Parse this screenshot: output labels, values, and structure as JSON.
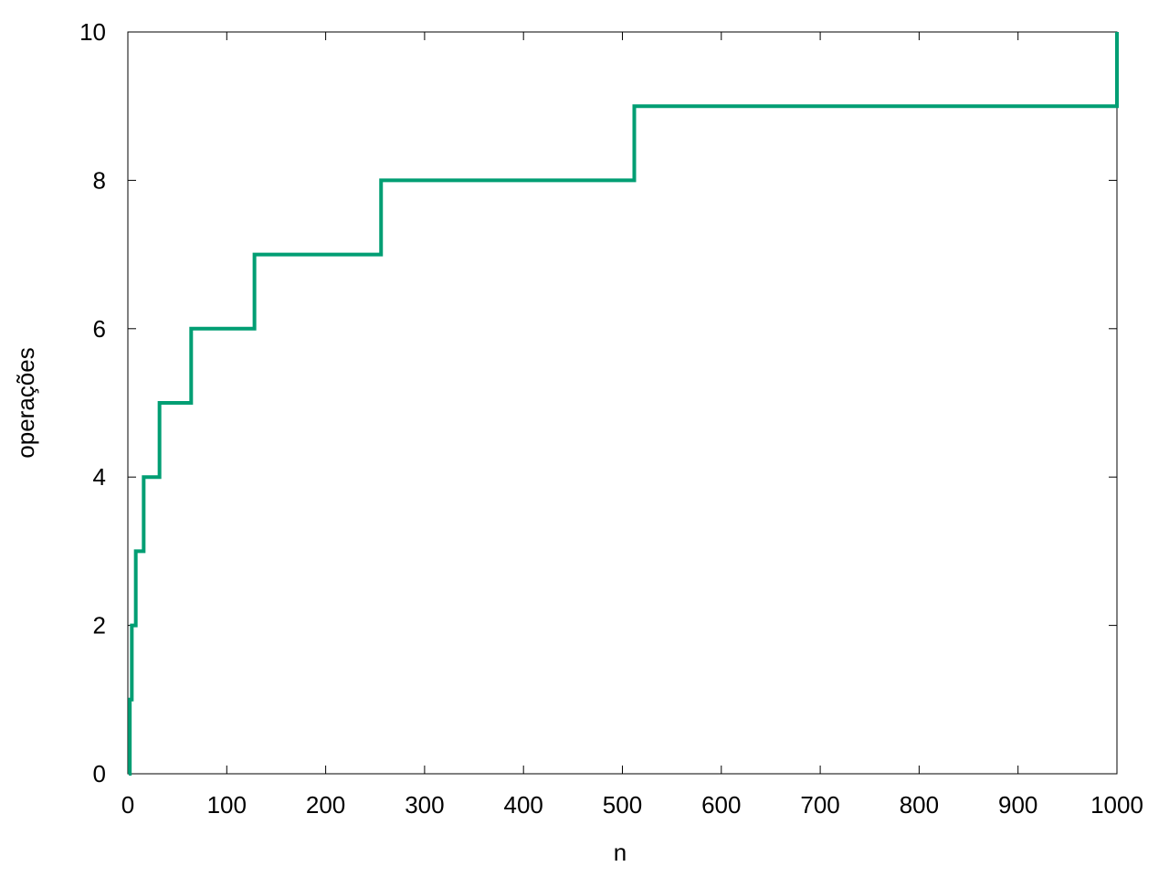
{
  "chart_data": {
    "type": "line",
    "title": "",
    "xlabel": "n",
    "ylabel": "operações",
    "xlim": [
      0,
      1000
    ],
    "ylim": [
      0,
      10
    ],
    "xticks": [
      0,
      100,
      200,
      300,
      400,
      500,
      600,
      700,
      800,
      900,
      1000
    ],
    "yticks": [
      0,
      2,
      4,
      6,
      8,
      10
    ],
    "grid": false,
    "legend": "none",
    "series": [
      {
        "color": "#009e73",
        "step": "post",
        "x": [
          1,
          2,
          4,
          8,
          16,
          32,
          64,
          128,
          256,
          512,
          1000
        ],
        "y": [
          0,
          1,
          2,
          3,
          4,
          5,
          6,
          7,
          8,
          9,
          10
        ]
      }
    ]
  }
}
